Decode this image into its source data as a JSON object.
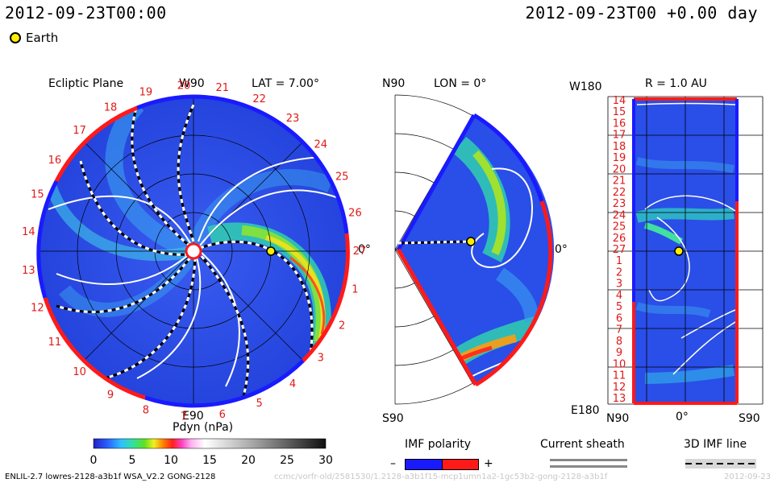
{
  "header": {
    "time_left": "2012-09-23T00:00",
    "time_right": "2012-09-23T00 +0.00 day",
    "earth_label": "Earth"
  },
  "ecliptic": {
    "title": "Ecliptic Plane",
    "top_label": "W90",
    "lat_label": "LAT = 7.00°",
    "bottom_label": "E90",
    "right_label": "0°",
    "numbers": [
      "1",
      "2",
      "3",
      "4",
      "5",
      "6",
      "7",
      "8",
      "9",
      "10",
      "11",
      "12",
      "13",
      "14",
      "15",
      "16",
      "17",
      "18",
      "19",
      "20",
      "21",
      "22",
      "23",
      "24",
      "25",
      "26",
      "27"
    ]
  },
  "meridional": {
    "top_label": "N90",
    "lon_label": "LON = 0°",
    "bottom_label": "S90",
    "right_label": "0°"
  },
  "radial": {
    "top_left": "W180",
    "r_label": "R = 1.0 AU",
    "bottom_left": "E180",
    "bottom_axis": [
      "N90",
      "0°",
      "S90"
    ],
    "rows": [
      "14",
      "15",
      "16",
      "17",
      "18",
      "19",
      "20",
      "21",
      "22",
      "23",
      "24",
      "25",
      "26",
      "27",
      "1",
      "2",
      "3",
      "4",
      "5",
      "6",
      "7",
      "8",
      "9",
      "10",
      "11",
      "12",
      "13"
    ]
  },
  "colorbar": {
    "title": "Pdyn (nPa)",
    "ticks": [
      "0",
      "5",
      "10",
      "15",
      "20",
      "25",
      "30"
    ],
    "range": [
      0,
      30
    ]
  },
  "legend": {
    "imf_title": "IMF polarity",
    "minus": "–",
    "plus": "+",
    "sheath_title": "Current sheath",
    "imf3d_title": "3D IMF line"
  },
  "footer": {
    "model": "ENLIL-2.7 lowres-2128-a3b1f WSA_V2.2 GONG-2128",
    "faint_run": "ccmc/vorfr-old/2581530/1.2128-a3b1f15-mcp1umn1a2-1gc53b2-gong-2128-a3b1f",
    "faint_date": "2012-09-23"
  },
  "colors": {
    "positive": "#ff1a1a",
    "negative": "#1a1aff",
    "background_fill": "#2a4ee8",
    "earth": "#ffee00"
  }
}
